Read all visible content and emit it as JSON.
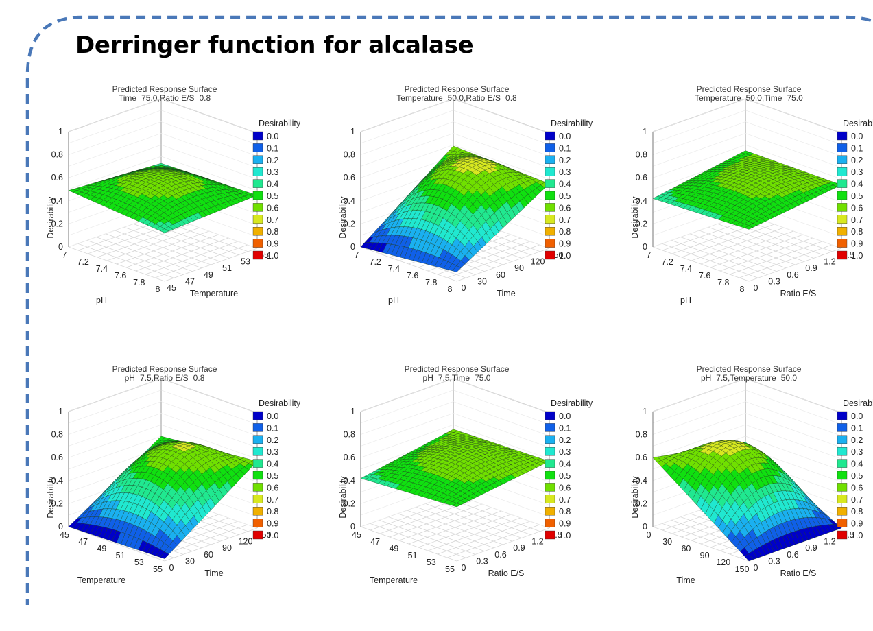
{
  "header": {
    "title": "Derringer function for alcalase"
  },
  "chart_data": [
    {
      "type": "surface",
      "title": "Predicted Response Surface",
      "subtitle": "Time=75.0,Ratio E/S=0.8",
      "xlabel": "pH",
      "ylabel": "Temperature",
      "zlabel": "Desirability",
      "x_ticks": [
        "7",
        "7.2",
        "7.4",
        "7.6",
        "7.8",
        "8"
      ],
      "y_ticks": [
        "45",
        "47",
        "49",
        "51",
        "53",
        "55"
      ],
      "z_ticks": [
        "0",
        "0.2",
        "0.4",
        "0.6",
        "0.8",
        "1"
      ],
      "xlim": [
        7,
        8
      ],
      "ylim": [
        45,
        55
      ],
      "zlim": [
        0,
        1
      ],
      "corners": {
        "x_min_y_min": 0.42,
        "x_max_y_min": 0.49,
        "x_min_y_max": 0.46,
        "x_max_y_max": 0.44,
        "peak": 0.62
      }
    },
    {
      "type": "surface",
      "title": "Predicted Response Surface",
      "subtitle": "Temperature=50.0,Ratio E/S=0.8",
      "xlabel": "pH",
      "ylabel": "Time",
      "zlabel": "Desirability",
      "x_ticks": [
        "7",
        "7.2",
        "7.4",
        "7.6",
        "7.8",
        "8"
      ],
      "y_ticks": [
        "0",
        "30",
        "60",
        "90",
        "120",
        "150"
      ],
      "z_ticks": [
        "0",
        "0.2",
        "0.4",
        "0.6",
        "0.8",
        "1"
      ],
      "xlim": [
        7,
        8
      ],
      "ylim": [
        0,
        150
      ],
      "zlim": [
        0,
        1
      ],
      "corners": {
        "x_min_y_min": 0.08,
        "x_max_y_min": 0.0,
        "x_min_y_max": 0.56,
        "x_max_y_max": 0.59,
        "peak": 0.66
      }
    },
    {
      "type": "surface",
      "title": "Predicted Response Surface",
      "subtitle": "Temperature=50.0,Time=75.0",
      "xlabel": "pH",
      "ylabel": "Ratio E/S",
      "zlabel": "Desirability",
      "x_ticks": [
        "7",
        "7.2",
        "7.4",
        "7.6",
        "7.8",
        "8"
      ],
      "y_ticks": [
        "0",
        "0.3",
        "0.6",
        "0.9",
        "1.2",
        "1.5"
      ],
      "z_ticks": [
        "0",
        "0.2",
        "0.4",
        "0.6",
        "0.8",
        "1"
      ],
      "xlim": [
        7,
        8
      ],
      "ylim": [
        0,
        1.5
      ],
      "zlim": [
        0,
        1
      ],
      "corners": {
        "x_min_y_min": 0.45,
        "x_max_y_min": 0.42,
        "x_min_y_max": 0.55,
        "x_max_y_max": 0.55,
        "peak": 0.6
      }
    },
    {
      "type": "surface",
      "title": "Predicted Response Surface",
      "subtitle": "pH=7.5,Ratio E/S=0.8",
      "xlabel": "Temperature",
      "ylabel": "Time",
      "zlabel": "Desirability",
      "x_ticks": [
        "45",
        "47",
        "49",
        "51",
        "53",
        "55"
      ],
      "y_ticks": [
        "0",
        "30",
        "60",
        "90",
        "120",
        "150"
      ],
      "z_ticks": [
        "0",
        "0.2",
        "0.4",
        "0.6",
        "0.8",
        "1"
      ],
      "xlim": [
        45,
        55
      ],
      "ylim": [
        0,
        150
      ],
      "zlim": [
        0,
        1
      ],
      "corners": {
        "x_min_y_min": 0.02,
        "x_max_y_min": 0.0,
        "x_min_y_max": 0.58,
        "x_max_y_max": 0.5,
        "peak": 0.64
      }
    },
    {
      "type": "surface",
      "title": "Predicted Response Surface",
      "subtitle": "pH=7.5,Time=75.0",
      "xlabel": "Temperature",
      "ylabel": "Ratio E/S",
      "zlabel": "Desirability",
      "x_ticks": [
        "45",
        "47",
        "49",
        "51",
        "53",
        "55"
      ],
      "y_ticks": [
        "0",
        "0.3",
        "0.6",
        "0.9",
        "1.2",
        "1.5"
      ],
      "z_ticks": [
        "0",
        "0.2",
        "0.4",
        "0.6",
        "0.8",
        "1"
      ],
      "xlim": [
        45,
        55
      ],
      "ylim": [
        0,
        1.5
      ],
      "zlim": [
        0,
        1
      ],
      "corners": {
        "x_min_y_min": 0.47,
        "x_max_y_min": 0.42,
        "x_min_y_max": 0.58,
        "x_max_y_max": 0.56,
        "peak": 0.63
      }
    },
    {
      "type": "surface",
      "title": "Predicted Response Surface",
      "subtitle": "pH=7.5,Temperature=50.0",
      "xlabel": "Time",
      "ylabel": "Ratio E/S",
      "zlabel": "Desirability",
      "x_ticks": [
        "0",
        "30",
        "60",
        "90",
        "120",
        "150"
      ],
      "y_ticks": [
        "0",
        "0.3",
        "0.6",
        "0.9",
        "1.2",
        "1.5"
      ],
      "z_ticks": [
        "0",
        "0.2",
        "0.4",
        "0.6",
        "0.8",
        "1"
      ],
      "xlim": [
        0,
        150
      ],
      "ylim": [
        0,
        1.5
      ],
      "zlim": [
        0,
        1
      ],
      "corners": {
        "x_min_y_min": 0.0,
        "x_max_y_min": 0.6,
        "x_min_y_max": 0.0,
        "x_max_y_max": 0.45,
        "peak": 0.68
      }
    }
  ],
  "legend": {
    "title": "Desirability",
    "items": [
      {
        "label": "0.0",
        "color": "#0000c8"
      },
      {
        "label": "0.1",
        "color": "#1060e8"
      },
      {
        "label": "0.2",
        "color": "#1ab0f0"
      },
      {
        "label": "0.3",
        "color": "#20e8d0"
      },
      {
        "label": "0.4",
        "color": "#20e890"
      },
      {
        "label": "0.5",
        "color": "#10e010"
      },
      {
        "label": "0.6",
        "color": "#70e000"
      },
      {
        "label": "0.7",
        "color": "#d8e820"
      },
      {
        "label": "0.8",
        "color": "#f0b000"
      },
      {
        "label": "0.9",
        "color": "#f06000"
      },
      {
        "label": "1.0",
        "color": "#e00000"
      }
    ]
  }
}
